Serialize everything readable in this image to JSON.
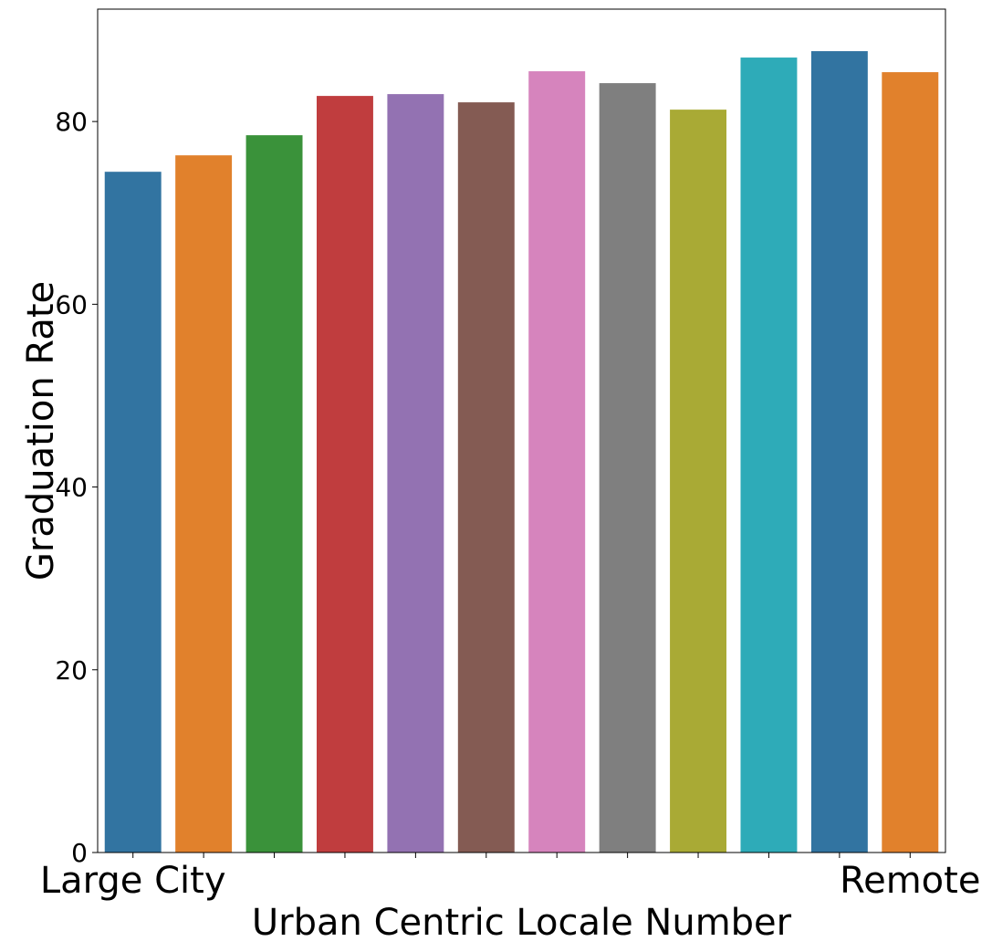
{
  "chart_data": {
    "type": "bar",
    "categories": [
      "Large City",
      "",
      "",
      "",
      "",
      "",
      "",
      "",
      "",
      "",
      "",
      "Remote"
    ],
    "values": [
      74.5,
      76.3,
      78.5,
      82.8,
      83.0,
      82.1,
      85.5,
      84.2,
      81.3,
      87.0,
      87.7,
      85.4
    ],
    "colors": [
      "#3274a1",
      "#e1812c",
      "#3a923a",
      "#c03d3e",
      "#9372b2",
      "#845b53",
      "#d684bd",
      "#7f7f7f",
      "#a9aa35",
      "#2eabb8",
      "#3274a1",
      "#e1812c"
    ],
    "xlabel": "Urban Centric Locale Number",
    "ylabel": "Graduation Rate",
    "ylim": [
      0,
      92.3
    ],
    "yticks": [
      0,
      20,
      40,
      60,
      80
    ],
    "grid": false
  }
}
